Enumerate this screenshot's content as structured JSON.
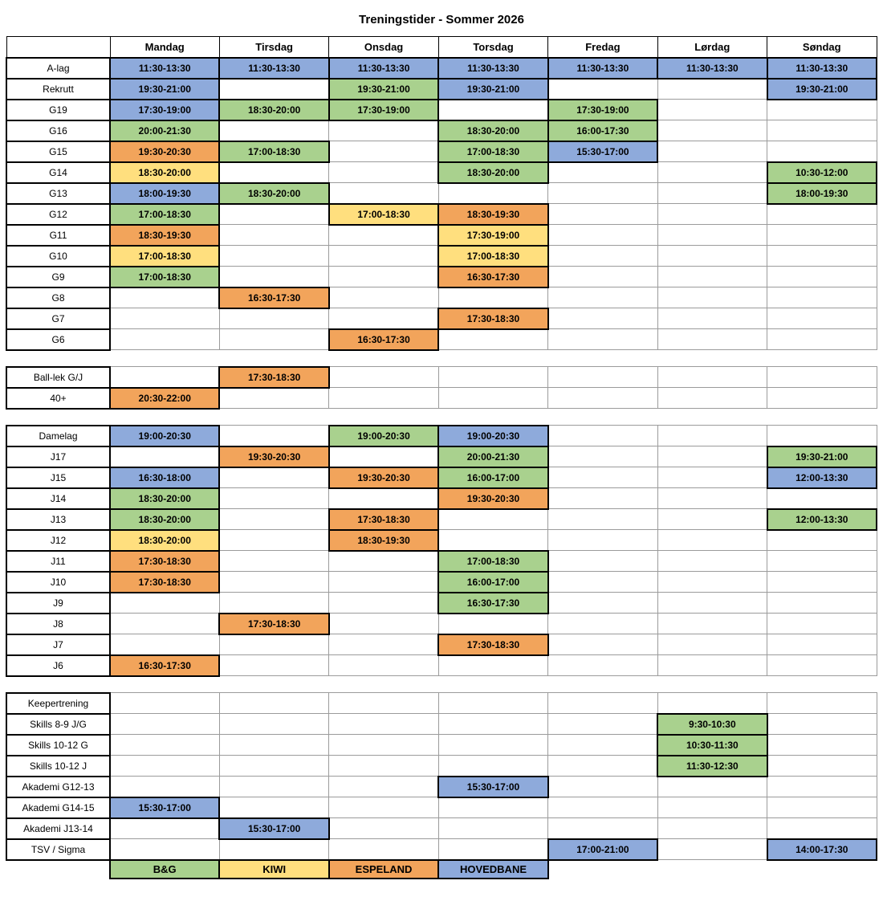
{
  "title": "Treningstider - Sommer 2026",
  "columns": [
    "",
    "Mandag",
    "Tirsdag",
    "Onsdag",
    "Torsdag",
    "Fredag",
    "Lørdag",
    "Søndag"
  ],
  "colors": {
    "green": "#A9D18E",
    "yellow": "#FFDF7E",
    "orange": "#F2A45B",
    "blue": "#8EAADB"
  },
  "legend": [
    {
      "label": "B&G",
      "c": "green"
    },
    {
      "label": "KIWI",
      "c": "yellow"
    },
    {
      "label": "ESPELAND",
      "c": "orange"
    },
    {
      "label": "HOVEDBANE",
      "c": "blue"
    }
  ],
  "rows": [
    {
      "label": "A-lag",
      "slots": [
        {
          "t": "11:30-13:30",
          "c": "blue"
        },
        {
          "t": "11:30-13:30",
          "c": "blue"
        },
        {
          "t": "11:30-13:30",
          "c": "blue"
        },
        {
          "t": "11:30-13:30",
          "c": "blue"
        },
        {
          "t": "11:30-13:30",
          "c": "blue"
        },
        {
          "t": "11:30-13:30",
          "c": "blue"
        },
        {
          "t": "11:30-13:30",
          "c": "blue"
        }
      ]
    },
    {
      "label": "Rekrutt",
      "slots": [
        {
          "t": "19:30-21:00",
          "c": "blue"
        },
        null,
        {
          "t": "19:30-21:00",
          "c": "green"
        },
        {
          "t": "19:30-21:00",
          "c": "blue"
        },
        null,
        null,
        {
          "t": "19:30-21:00",
          "c": "blue"
        }
      ]
    },
    {
      "label": "G19",
      "slots": [
        {
          "t": "17:30-19:00",
          "c": "blue"
        },
        {
          "t": "18:30-20:00",
          "c": "green"
        },
        {
          "t": "17:30-19:00",
          "c": "green"
        },
        null,
        {
          "t": "17:30-19:00",
          "c": "green"
        },
        null,
        null
      ]
    },
    {
      "label": "G16",
      "slots": [
        {
          "t": "20:00-21:30",
          "c": "green"
        },
        null,
        null,
        {
          "t": "18:30-20:00",
          "c": "green"
        },
        {
          "t": "16:00-17:30",
          "c": "green"
        },
        null,
        null
      ]
    },
    {
      "label": "G15",
      "slots": [
        {
          "t": "19:30-20:30",
          "c": "orange"
        },
        {
          "t": "17:00-18:30",
          "c": "green"
        },
        null,
        {
          "t": "17:00-18:30",
          "c": "green"
        },
        {
          "t": "15:30-17:00",
          "c": "blue"
        },
        null,
        null
      ]
    },
    {
      "label": "G14",
      "slots": [
        {
          "t": "18:30-20:00",
          "c": "yellow"
        },
        null,
        null,
        {
          "t": "18:30-20:00",
          "c": "green"
        },
        null,
        null,
        {
          "t": "10:30-12:00",
          "c": "green"
        }
      ]
    },
    {
      "label": "G13",
      "slots": [
        {
          "t": "18:00-19:30",
          "c": "blue"
        },
        {
          "t": "18:30-20:00",
          "c": "green"
        },
        null,
        null,
        null,
        null,
        {
          "t": "18:00-19:30",
          "c": "green"
        }
      ]
    },
    {
      "label": "G12",
      "slots": [
        {
          "t": "17:00-18:30",
          "c": "green"
        },
        null,
        {
          "t": "17:00-18:30",
          "c": "yellow"
        },
        {
          "t": "18:30-19:30",
          "c": "orange"
        },
        null,
        null,
        null
      ]
    },
    {
      "label": "G11",
      "slots": [
        {
          "t": "18:30-19:30",
          "c": "orange"
        },
        null,
        null,
        {
          "t": "17:30-19:00",
          "c": "yellow"
        },
        null,
        null,
        null
      ]
    },
    {
      "label": "G10",
      "slots": [
        {
          "t": "17:00-18:30",
          "c": "yellow"
        },
        null,
        null,
        {
          "t": "17:00-18:30",
          "c": "yellow"
        },
        null,
        null,
        null
      ]
    },
    {
      "label": "G9",
      "slots": [
        {
          "t": "17:00-18:30",
          "c": "green"
        },
        null,
        null,
        {
          "t": "16:30-17:30",
          "c": "orange"
        },
        null,
        null,
        null
      ]
    },
    {
      "label": "G8",
      "slots": [
        null,
        {
          "t": "16:30-17:30",
          "c": "orange"
        },
        null,
        null,
        null,
        null,
        null
      ]
    },
    {
      "label": "G7",
      "slots": [
        null,
        null,
        null,
        {
          "t": "17:30-18:30",
          "c": "orange"
        },
        null,
        null,
        null
      ]
    },
    {
      "label": "G6",
      "slots": [
        null,
        null,
        {
          "t": "16:30-17:30",
          "c": "orange"
        },
        null,
        null,
        null,
        null
      ]
    },
    {
      "gap": true
    },
    {
      "label": "Ball-lek G/J",
      "slots": [
        null,
        {
          "t": "17:30-18:30",
          "c": "orange"
        },
        null,
        null,
        null,
        null,
        null
      ]
    },
    {
      "label": "40+",
      "slots": [
        {
          "t": "20:30-22:00",
          "c": "orange"
        },
        null,
        null,
        null,
        null,
        null,
        null
      ]
    },
    {
      "gap": true
    },
    {
      "label": "Damelag",
      "slots": [
        {
          "t": "19:00-20:30",
          "c": "blue"
        },
        null,
        {
          "t": "19:00-20:30",
          "c": "green"
        },
        {
          "t": "19:00-20:30",
          "c": "blue"
        },
        null,
        null,
        null
      ]
    },
    {
      "label": "J17",
      "slots": [
        null,
        {
          "t": "19:30-20:30",
          "c": "orange"
        },
        null,
        {
          "t": "20:00-21:30",
          "c": "green"
        },
        null,
        null,
        {
          "t": "19:30-21:00",
          "c": "green"
        }
      ]
    },
    {
      "label": "J15",
      "slots": [
        {
          "t": "16:30-18:00",
          "c": "blue"
        },
        null,
        {
          "t": "19:30-20:30",
          "c": "orange"
        },
        {
          "t": "16:00-17:00",
          "c": "green"
        },
        null,
        null,
        {
          "t": "12:00-13:30",
          "c": "blue"
        }
      ]
    },
    {
      "label": "J14",
      "slots": [
        {
          "t": "18:30-20:00",
          "c": "green"
        },
        null,
        null,
        {
          "t": "19:30-20:30",
          "c": "orange"
        },
        null,
        null,
        null
      ]
    },
    {
      "label": "J13",
      "slots": [
        {
          "t": "18:30-20:00",
          "c": "green"
        },
        null,
        {
          "t": "17:30-18:30",
          "c": "orange"
        },
        null,
        null,
        null,
        {
          "t": "12:00-13:30",
          "c": "green"
        }
      ]
    },
    {
      "label": "J12",
      "slots": [
        {
          "t": "18:30-20:00",
          "c": "yellow"
        },
        null,
        {
          "t": "18:30-19:30",
          "c": "orange"
        },
        null,
        null,
        null,
        null
      ]
    },
    {
      "label": "J11",
      "slots": [
        {
          "t": "17:30-18:30",
          "c": "orange"
        },
        null,
        null,
        {
          "t": "17:00-18:30",
          "c": "green"
        },
        null,
        null,
        null
      ]
    },
    {
      "label": "J10",
      "slots": [
        {
          "t": "17:30-18:30",
          "c": "orange"
        },
        null,
        null,
        {
          "t": "16:00-17:00",
          "c": "green"
        },
        null,
        null,
        null
      ]
    },
    {
      "label": "J9",
      "slots": [
        null,
        null,
        null,
        {
          "t": "16:30-17:30",
          "c": "green"
        },
        null,
        null,
        null
      ]
    },
    {
      "label": "J8",
      "slots": [
        null,
        {
          "t": "17:30-18:30",
          "c": "orange"
        },
        null,
        null,
        null,
        null,
        null
      ]
    },
    {
      "label": "J7",
      "slots": [
        null,
        null,
        null,
        {
          "t": "17:30-18:30",
          "c": "orange"
        },
        null,
        null,
        null
      ]
    },
    {
      "label": "J6",
      "slots": [
        {
          "t": "16:30-17:30",
          "c": "orange"
        },
        null,
        null,
        null,
        null,
        null,
        null
      ]
    },
    {
      "gap": true
    },
    {
      "label": "Keepertrening",
      "slots": [
        null,
        null,
        null,
        null,
        null,
        null,
        null
      ]
    },
    {
      "label": "Skills 8-9 J/G",
      "slots": [
        null,
        null,
        null,
        null,
        null,
        {
          "t": "9:30-10:30",
          "c": "green"
        },
        null
      ]
    },
    {
      "label": "Skills 10-12 G",
      "slots": [
        null,
        null,
        null,
        null,
        null,
        {
          "t": "10:30-11:30",
          "c": "green"
        },
        null
      ]
    },
    {
      "label": "Skills 10-12 J",
      "slots": [
        null,
        null,
        null,
        null,
        null,
        {
          "t": "11:30-12:30",
          "c": "green"
        },
        null
      ]
    },
    {
      "label": "Akademi G12-13",
      "slots": [
        null,
        null,
        null,
        {
          "t": "15:30-17:00",
          "c": "blue"
        },
        null,
        null,
        null
      ]
    },
    {
      "label": "Akademi G14-15",
      "slots": [
        {
          "t": "15:30-17:00",
          "c": "blue"
        },
        null,
        null,
        null,
        null,
        null,
        null
      ]
    },
    {
      "label": "Akademi J13-14",
      "slots": [
        null,
        {
          "t": "15:30-17:00",
          "c": "blue"
        },
        null,
        null,
        null,
        null,
        null
      ]
    },
    {
      "label": "TSV / Sigma",
      "slots": [
        null,
        null,
        null,
        null,
        {
          "t": "17:00-21:00",
          "c": "blue"
        },
        null,
        {
          "t": "14:00-17:30",
          "c": "blue"
        }
      ]
    }
  ]
}
